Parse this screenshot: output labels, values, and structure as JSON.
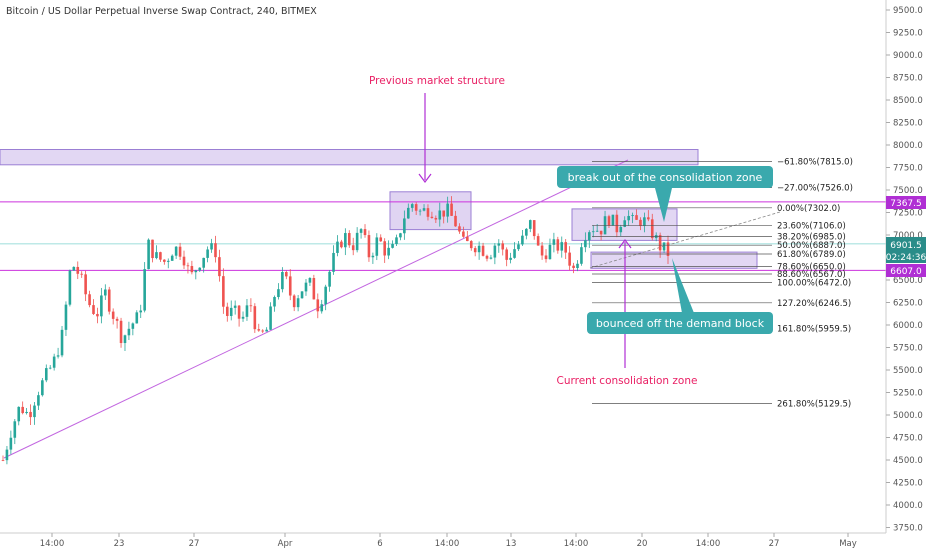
{
  "header": {
    "title": "Bitcoin / US Dollar Perpetual Inverse Swap Contract, 240, BITMEX"
  },
  "colors": {
    "up": "#26a69a",
    "down": "#ef5350",
    "zone_fill": "#d6c6ee",
    "zone_stroke": "#9b7fd4",
    "level_line": "#cc33dd",
    "annotation_text": "#e91e63",
    "callout_bg": "#3aa9ad",
    "price_tag_current": "#2a8c89",
    "price_tag_level": "#b02fd4",
    "trendline": "#c266e0"
  },
  "chart_data": {
    "type": "candlestick",
    "title": "Bitcoin / US Dollar Perpetual Inverse Swap Contract, 240, BITMEX",
    "y_axis": {
      "range": [
        3750,
        9600
      ],
      "ticks": [
        "9500.0",
        "9250.0",
        "9000.0",
        "8750.0",
        "8500.0",
        "8250.0",
        "8000.0",
        "7750.0",
        "7500.0",
        "7250.0",
        "7000.0",
        "6750.0",
        "6500.0",
        "6250.0",
        "6000.0",
        "5750.0",
        "5500.0",
        "5250.0",
        "5000.0",
        "4750.0",
        "4500.0",
        "4250.0",
        "4000.0",
        "3750.0"
      ]
    },
    "x_axis": {
      "ticks": [
        "14:00",
        "23",
        "27",
        "Apr",
        "6",
        "14:00",
        "13",
        "14:00",
        "20",
        "14:00",
        "27",
        "May"
      ]
    },
    "price_tags": {
      "resistance": "7367.5",
      "current": "6901.5",
      "countdown": "02:24:36",
      "support": "6607.0"
    },
    "horizontal_levels": [
      7367.5,
      6607.0,
      6901.5
    ],
    "fibonacci": [
      {
        "label": "−61.80%(7815.0)",
        "price": 7815.0
      },
      {
        "label": "−27.00%(7526.0)",
        "price": 7526.0
      },
      {
        "label": "0.00%(7302.0)",
        "price": 7302.0
      },
      {
        "label": "23.60%(7106.0)",
        "price": 7106.0
      },
      {
        "label": "38.20%(6985.0)",
        "price": 6985.0
      },
      {
        "label": "50.00%(6887.0)",
        "price": 6887.0
      },
      {
        "label": "61.80%(6789.0)",
        "price": 6789.0
      },
      {
        "label": "78.60%(6650.0)",
        "price": 6650.0
      },
      {
        "label": "88.60%(6567.0)",
        "price": 6567.0
      },
      {
        "label": "100.00%(6472.0)",
        "price": 6472.0
      },
      {
        "label": "127.20%(6246.5)",
        "price": 6246.5
      },
      {
        "label": "161.80%(5959.5)",
        "price": 5959.5
      },
      {
        "label": "261.80%(5129.5)",
        "price": 5129.5
      }
    ],
    "zones": [
      {
        "name": "top-supply-zone",
        "top": 7950,
        "bottom": 7780
      },
      {
        "name": "previous-structure-zone",
        "top": 7480,
        "bottom": 7060
      },
      {
        "name": "consolidation-zone",
        "top": 7290,
        "bottom": 6940
      },
      {
        "name": "demand-block",
        "top": 6810,
        "bottom": 6630
      }
    ],
    "close_path": [
      4500,
      4850,
      5100,
      5000,
      5250,
      5420,
      5600,
      5900,
      6700,
      6550,
      6250,
      6120,
      6350,
      6100,
      5850,
      6000,
      6100,
      6900,
      6750,
      6700,
      6860,
      6820,
      6520,
      6700,
      6850,
      6820,
      6100,
      6150,
      6050,
      6250,
      5850,
      5950,
      6400,
      6550,
      6250,
      6400,
      6450,
      6200,
      6500,
      6800,
      7000,
      6880,
      7050,
      6760,
      6960,
      6800,
      6850,
      7200,
      7350,
      7250,
      7300,
      7230,
      7280,
      7150,
      6900,
      6900,
      6870,
      6780,
      6950,
      6720,
      6850,
      6950,
      7150,
      6750,
      6850,
      6880,
      6820,
      6600,
      7000,
      7100,
      7050,
      7200,
      7080,
      7250,
      7120,
      7180,
      7050,
      6880,
      6800
    ]
  },
  "annotations": {
    "previous_structure": "Previous market structure",
    "current_consolidation": "Current consolidation zone",
    "breakout_callout": "break out of the consolidation zone",
    "bounce_callout": "bounced off the demand block"
  }
}
